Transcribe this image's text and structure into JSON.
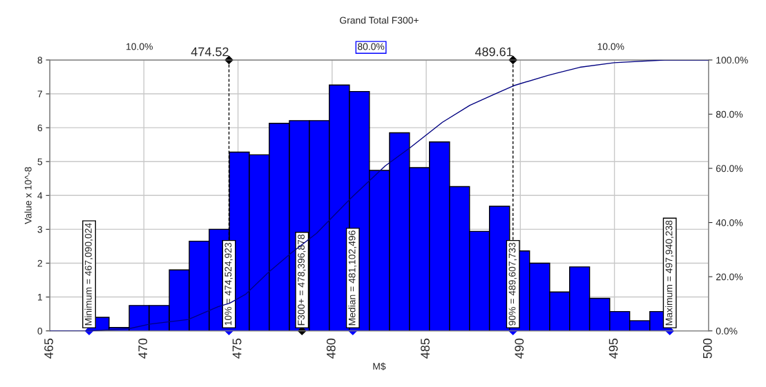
{
  "chart_data": {
    "type": "histogram",
    "title": "Grand Total F300+",
    "xlabel": "M$",
    "ylabel": "Value x 10^-8",
    "bins": [
      467.09,
      468.15,
      469.22,
      470.28,
      471.35,
      472.41,
      473.47,
      474.54,
      475.6,
      476.66,
      477.73,
      478.79,
      479.85,
      480.92,
      481.98,
      483.05,
      484.11,
      485.17,
      486.24,
      487.3,
      488.36,
      489.43,
      490.49,
      491.56,
      492.62,
      493.68,
      494.75,
      495.81,
      496.88,
      497.94
    ],
    "values": [
      0.4,
      0.1,
      0.75,
      0.75,
      1.8,
      2.65,
      3.0,
      5.28,
      5.2,
      6.13,
      6.21,
      6.21,
      7.26,
      7.07,
      4.74,
      5.85,
      4.82,
      5.58,
      4.26,
      2.94,
      3.68,
      2.36,
      2.0,
      1.15,
      1.89,
      0.96,
      0.57,
      0.3,
      0.57
    ],
    "color": "#0000ff",
    "series": [
      {
        "type": "line",
        "axis": "y2",
        "color": "#000080",
        "x": [
          465,
          467.09,
          469.2,
          470.3,
          472.36,
          473.94,
          474.55,
          475.4,
          476.62,
          477.84,
          479.17,
          481.0,
          482.82,
          484.16,
          485.86,
          487.32,
          488.54,
          489.64,
          491.46,
          491.95,
          493.16,
          494.99,
          497.66,
          500
        ],
        "values": [
          0,
          0,
          0.8,
          2.5,
          4.2,
          8.9,
          10.2,
          13.5,
          21.6,
          28.8,
          36,
          49,
          60.9,
          67.7,
          77,
          83.3,
          87.1,
          90.5,
          94.3,
          95.2,
          97.3,
          99,
          100,
          100
        ]
      },
      {
        "type": "scatter",
        "marker": "diamond",
        "x": [
          467.09,
          474.52,
          478.4,
          481.1,
          489.61,
          497.94
        ],
        "values": [
          0,
          0,
          0,
          0,
          0,
          0
        ],
        "colors": [
          "#0000ff",
          "#0000ff",
          "#000000",
          "#0000ff",
          "#0000ff",
          "#0000ff"
        ]
      },
      {
        "type": "scatter",
        "marker": "diamond",
        "x": [
          474.52,
          489.61
        ],
        "values": [
          8,
          8
        ],
        "color": "#000000"
      }
    ],
    "xlim": [
      465,
      500
    ],
    "xticks": [
      465,
      470,
      475,
      480,
      485,
      490,
      495,
      500
    ],
    "ylim": [
      0,
      8
    ],
    "yticks": [
      0,
      1,
      2,
      3,
      4,
      5,
      6,
      7,
      8
    ],
    "y2lim": [
      0,
      100
    ],
    "y2ticks": [
      {
        "value": 0,
        "label": "0.0%"
      },
      {
        "value": 20,
        "label": "20.0%"
      },
      {
        "value": 40,
        "label": "40.0%"
      },
      {
        "value": 60,
        "label": "60.0%"
      },
      {
        "value": 80,
        "label": "80.0%"
      },
      {
        "value": 100,
        "label": "100.0%"
      }
    ],
    "ref_lines": [
      {
        "axis": "x",
        "value": 474.52,
        "label": "474.52",
        "line_style": "dashed"
      },
      {
        "axis": "x",
        "value": 489.61,
        "label": "489.61",
        "line_style": "dashed"
      }
    ],
    "annotations": [
      "10.0%",
      "80.0%",
      "10.0%",
      {
        "text": "Minimum = 467,090,024",
        "x": 467.09,
        "y": 0
      },
      {
        "text": "10% = 474,524,923",
        "x": 474.52,
        "y": 0
      },
      {
        "text": "F300+ = 478,396,878",
        "x": 478.4,
        "y": 0
      },
      {
        "text": "Median = 481,102,496",
        "x": 481.1,
        "y": 0
      },
      {
        "text": "90% = 489,607,733",
        "x": 489.61,
        "y": 0
      },
      {
        "text": "Maximum = 497,940,238",
        "x": 497.94,
        "y": 0
      }
    ],
    "grid": true
  }
}
